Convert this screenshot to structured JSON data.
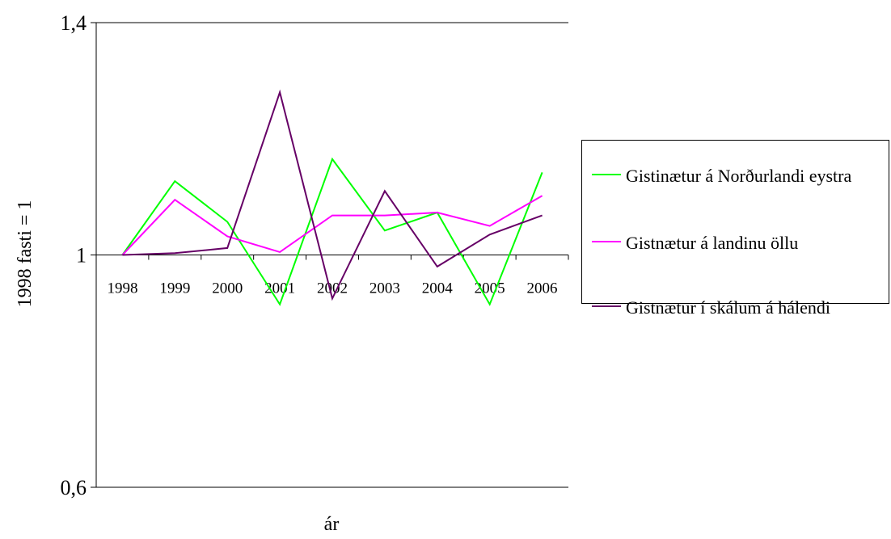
{
  "chart_data": {
    "type": "line",
    "xlabel": "ár",
    "ylabel": "1998 fasti = 1",
    "ylim": [
      0.6,
      1.4
    ],
    "y_ticks": [
      "1,4",
      "1",
      "0,6"
    ],
    "categories": [
      "1998",
      "1999",
      "2000",
      "2001",
      "2002",
      "2003",
      "2004",
      "2005",
      "2006"
    ],
    "grid": false,
    "legend_position": "right",
    "series": [
      {
        "name": "Gistinætur á Norðurlandi eystra",
        "color": "#00ff00",
        "values": [
          1.0,
          1.127,
          1.057,
          0.915,
          1.165,
          1.042,
          1.073,
          0.915,
          1.142
        ]
      },
      {
        "name": "Gistnætur á landinu öllu",
        "color": "#ff00ff",
        "values": [
          1.0,
          1.095,
          1.032,
          1.005,
          1.068,
          1.068,
          1.073,
          1.05,
          1.102
        ]
      },
      {
        "name": "Gistnætur í skálum á hálendi",
        "color": "#660066",
        "values": [
          1.0,
          1.003,
          1.012,
          1.28,
          0.925,
          1.11,
          0.98,
          1.035,
          1.068
        ]
      }
    ]
  }
}
